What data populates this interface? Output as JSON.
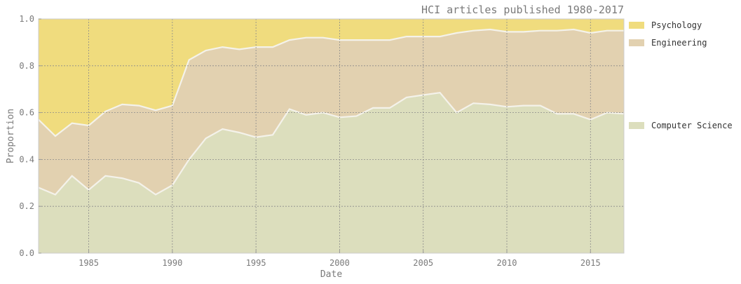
{
  "chart_data": {
    "type": "area",
    "stacked": true,
    "title": "HCI articles published 1980-2017",
    "xlabel": "Date",
    "ylabel": "Proportion",
    "xlim": [
      1982,
      2017
    ],
    "ylim": [
      0,
      1
    ],
    "xticks": [
      "1985",
      "1990",
      "1995",
      "2000",
      "2005",
      "2010",
      "2015"
    ],
    "yticks": [
      "0.0",
      "0.2",
      "0.4",
      "0.6",
      "0.8",
      "1.0"
    ],
    "grid": true,
    "legend_position": "right",
    "x": [
      1982,
      1983,
      1984,
      1985,
      1986,
      1987,
      1988,
      1989,
      1990,
      1991,
      1992,
      1993,
      1994,
      1995,
      1996,
      1997,
      1998,
      1999,
      2000,
      2001,
      2002,
      2003,
      2004,
      2005,
      2006,
      2007,
      2008,
      2009,
      2010,
      2011,
      2012,
      2013,
      2014,
      2015,
      2016,
      2017
    ],
    "series": [
      {
        "name": "Computer Science",
        "color": "#dcdebd",
        "values": [
          0.28,
          0.25,
          0.33,
          0.27,
          0.33,
          0.32,
          0.3,
          0.25,
          0.29,
          0.4,
          0.49,
          0.53,
          0.515,
          0.495,
          0.505,
          0.615,
          0.59,
          0.6,
          0.58,
          0.585,
          0.62,
          0.62,
          0.665,
          0.675,
          0.685,
          0.6,
          0.64,
          0.635,
          0.625,
          0.63,
          0.63,
          0.595,
          0.595,
          0.57,
          0.6,
          0.595
        ]
      },
      {
        "name": "Engineering",
        "color": "#e2d1b0",
        "values": [
          0.29,
          0.25,
          0.225,
          0.275,
          0.275,
          0.315,
          0.33,
          0.36,
          0.34,
          0.425,
          0.375,
          0.35,
          0.355,
          0.385,
          0.375,
          0.295,
          0.33,
          0.32,
          0.33,
          0.325,
          0.29,
          0.29,
          0.26,
          0.25,
          0.24,
          0.34,
          0.31,
          0.32,
          0.32,
          0.315,
          0.32,
          0.355,
          0.36,
          0.37,
          0.35,
          0.355
        ]
      },
      {
        "name": "Psychology",
        "color": "#f0dc7e",
        "values": [
          0.43,
          0.5,
          0.445,
          0.455,
          0.395,
          0.365,
          0.37,
          0.39,
          0.37,
          0.175,
          0.135,
          0.12,
          0.13,
          0.12,
          0.12,
          0.09,
          0.08,
          0.08,
          0.09,
          0.09,
          0.09,
          0.09,
          0.075,
          0.075,
          0.075,
          0.06,
          0.05,
          0.045,
          0.055,
          0.055,
          0.05,
          0.05,
          0.045,
          0.06,
          0.05,
          0.05
        ]
      }
    ],
    "legend_order": [
      "Psychology",
      "Engineering",
      "Computer Science"
    ]
  }
}
